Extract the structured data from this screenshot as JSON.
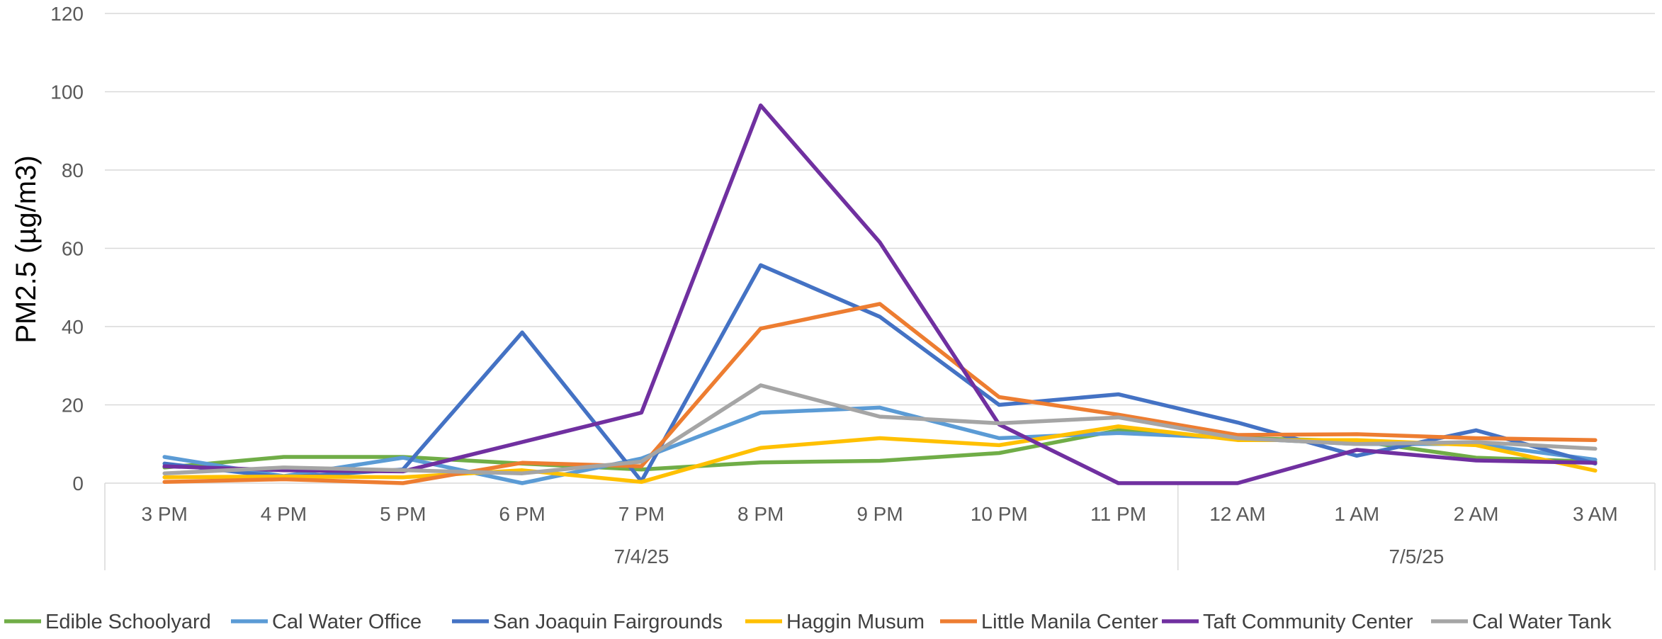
{
  "chart_data": {
    "type": "line",
    "ylabel": "PM2.5 (µg/m3)",
    "xlabel": "",
    "ylim": [
      0,
      120
    ],
    "yticks": [
      0,
      20,
      40,
      60,
      80,
      100,
      120
    ],
    "grid": true,
    "legend_position": "bottom",
    "categories": [
      "3 PM",
      "4 PM",
      "5 PM",
      "6 PM",
      "7 PM",
      "8 PM",
      "9 PM",
      "10 PM",
      "11 PM",
      "12 AM",
      "1 AM",
      "2 AM",
      "3 AM"
    ],
    "groups": [
      {
        "label": "7/4/25",
        "start": 0,
        "end": 8
      },
      {
        "label": "7/5/25",
        "start": 9,
        "end": 12
      }
    ],
    "series": [
      {
        "name": "Edible Schoolyard",
        "color": "#70ad47",
        "values": [
          4,
          6.7,
          6.7,
          5,
          3.5,
          5.3,
          5.7,
          7.7,
          13.5,
          11.5,
          10.8,
          6.5,
          5.5
        ]
      },
      {
        "name": "Cal Water Office",
        "color": "#5b9bd5",
        "values": [
          6.7,
          1.8,
          6.5,
          0,
          6.3,
          18,
          19.3,
          11.5,
          12.8,
          11.5,
          10,
          10,
          6
        ]
      },
      {
        "name": "San Joaquin Fairgrounds",
        "color": "#4472c4",
        "values": [
          5,
          1.5,
          3.5,
          38.5,
          0.5,
          55.7,
          42.5,
          20,
          22.7,
          15.5,
          7,
          13.5,
          5
        ]
      },
      {
        "name": "Haggin Musum",
        "color": "#ffc000",
        "values": [
          1.5,
          1.7,
          1.5,
          3.3,
          0.3,
          9,
          11.5,
          9.7,
          14.5,
          11,
          11,
          9.7,
          3.2
        ]
      },
      {
        "name": "Little Manila Center",
        "color": "#ed7d31",
        "values": [
          0.3,
          1,
          0,
          5.2,
          4.3,
          39.5,
          45.8,
          22,
          17.5,
          12.3,
          12.5,
          11.5,
          11
        ]
      },
      {
        "name": "Taft Community Center",
        "color": "#7030a0",
        "values": [
          4.3,
          3.3,
          3,
          10.5,
          18,
          96.5,
          61.5,
          15,
          0,
          0,
          8.5,
          5.8,
          5.2
        ]
      },
      {
        "name": "Cal Water Tank",
        "color": "#a5a5a5",
        "values": [
          2.5,
          4,
          3.3,
          2.5,
          5.5,
          25,
          17,
          15.3,
          16.8,
          11.5,
          10,
          10.5,
          8.8
        ]
      }
    ]
  }
}
